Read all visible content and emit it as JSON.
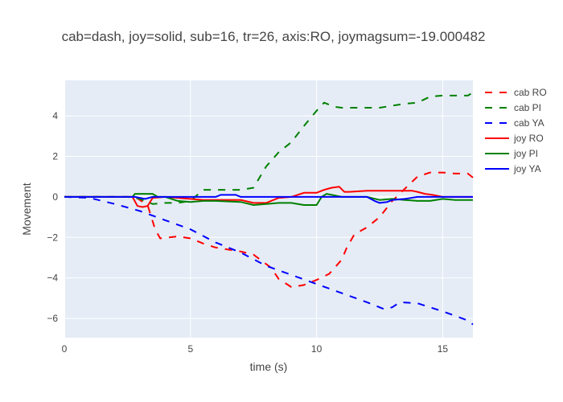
{
  "chart_data": {
    "type": "line",
    "title": "cab=dash, joy=solid, sub=16, tr=26, axis:RO, joymagsum=-19.000482",
    "xlabel": "time (s)",
    "ylabel": "Movement",
    "xlim": [
      0,
      16.2
    ],
    "ylim": [
      -6.95,
      5.75
    ],
    "x_ticks": [
      0,
      5,
      10,
      15
    ],
    "y_ticks": [
      -6,
      -4,
      -2,
      0,
      2,
      4
    ],
    "x_tick_labels": [
      "0",
      "5",
      "10",
      "15"
    ],
    "y_tick_labels": [
      "−6",
      "−4",
      "−2",
      "0",
      "2",
      "4"
    ],
    "grid": true,
    "legend_position": "right",
    "series": [
      {
        "name": "cab RO",
        "color": "#ff0000",
        "dash": "dash",
        "x": [
          0,
          2.8,
          3.3,
          3.6,
          3.8,
          4.5,
          5.0,
          5.5,
          6.0,
          7.0,
          7.5,
          8.2,
          8.5,
          9.0,
          9.5,
          10.0,
          10.5,
          11.0,
          11.2,
          11.5,
          12.0,
          12.5,
          13.0,
          13.5,
          14.0,
          14.5,
          15.0,
          15.5,
          16.0,
          16.2
        ],
        "values": [
          0,
          0,
          -0.4,
          -1.6,
          -2.05,
          -1.95,
          -2.05,
          -2.3,
          -2.5,
          -2.7,
          -2.85,
          -3.5,
          -4.05,
          -4.45,
          -4.35,
          -4.1,
          -3.8,
          -3.1,
          -2.5,
          -1.85,
          -1.5,
          -1.0,
          -0.2,
          0.4,
          1.0,
          1.2,
          1.2,
          1.15,
          1.15,
          0.95
        ]
      },
      {
        "name": "cab PI",
        "color": "#008000",
        "dash": "dash",
        "x": [
          0,
          2.5,
          3.0,
          3.5,
          4.0,
          4.5,
          5.0,
          5.5,
          6.0,
          7.0,
          7.5,
          8.0,
          8.5,
          9.0,
          9.5,
          10.0,
          10.3,
          10.7,
          11.0,
          12.0,
          12.5,
          13.0,
          13.5,
          14.0,
          14.5,
          15.0,
          15.5,
          16.0,
          16.2
        ],
        "values": [
          0,
          0,
          -0.1,
          -0.35,
          -0.3,
          -0.3,
          -0.2,
          0.35,
          0.35,
          0.35,
          0.45,
          1.5,
          2.2,
          2.7,
          3.5,
          4.25,
          4.65,
          4.45,
          4.4,
          4.4,
          4.4,
          4.5,
          4.6,
          4.65,
          4.95,
          5.0,
          5.0,
          5.0,
          5.15
        ]
      },
      {
        "name": "cab YA",
        "color": "#0000ff",
        "dash": "dash",
        "x": [
          0,
          1.0,
          2.0,
          3.0,
          4.0,
          5.0,
          6.0,
          7.0,
          8.0,
          9.0,
          10.0,
          11.0,
          12.0,
          12.7,
          13.0,
          13.3,
          14.0,
          15.0,
          16.0,
          16.2
        ],
        "values": [
          0,
          -0.05,
          -0.35,
          -0.7,
          -1.15,
          -1.6,
          -2.25,
          -2.75,
          -3.4,
          -3.85,
          -4.3,
          -4.75,
          -5.2,
          -5.55,
          -5.45,
          -5.2,
          -5.25,
          -5.65,
          -6.1,
          -6.3
        ]
      },
      {
        "name": "joy RO",
        "color": "#ff0000",
        "dash": "solid",
        "x": [
          0,
          2.7,
          2.9,
          3.1,
          3.3,
          3.5,
          4.0,
          5.0,
          5.5,
          6.0,
          7.0,
          7.5,
          8.0,
          8.5,
          9.0,
          9.5,
          10.0,
          10.3,
          10.6,
          10.9,
          11.1,
          11.3,
          12.0,
          12.5,
          13.0,
          13.5,
          13.8,
          14.0,
          14.3,
          14.6,
          15.0,
          15.5,
          16.2
        ],
        "values": [
          0,
          0,
          -0.45,
          -0.5,
          -0.45,
          -0.05,
          0.0,
          -0.1,
          -0.15,
          -0.15,
          -0.15,
          -0.3,
          -0.3,
          -0.05,
          0.0,
          0.2,
          0.2,
          0.35,
          0.45,
          0.5,
          0.25,
          0.25,
          0.3,
          0.3,
          0.3,
          0.3,
          0.3,
          0.25,
          0.15,
          0.1,
          0.0,
          0.0,
          0.0
        ]
      },
      {
        "name": "joy PI",
        "color": "#008000",
        "dash": "solid",
        "x": [
          0,
          2.7,
          2.8,
          3.5,
          3.7,
          4.0,
          4.5,
          5.0,
          5.5,
          6.0,
          7.0,
          7.5,
          8.0,
          8.5,
          9.0,
          9.5,
          10.0,
          10.2,
          10.4,
          10.8,
          11.0,
          12.0,
          12.5,
          13.0,
          13.5,
          14.0,
          14.5,
          15.0,
          15.5,
          16.2
        ],
        "values": [
          0,
          0,
          0.15,
          0.15,
          0.0,
          0.0,
          -0.2,
          -0.25,
          -0.2,
          -0.2,
          -0.25,
          -0.4,
          -0.35,
          -0.3,
          -0.3,
          -0.4,
          -0.4,
          0.0,
          0.15,
          0.05,
          0.0,
          0.0,
          -0.15,
          -0.1,
          -0.15,
          -0.2,
          -0.2,
          -0.1,
          -0.15,
          -0.15
        ]
      },
      {
        "name": "joy YA",
        "color": "#0000ff",
        "dash": "solid",
        "x": [
          0,
          2.8,
          3.0,
          3.2,
          3.5,
          4.0,
          5.0,
          5.5,
          6.0,
          6.2,
          6.8,
          7.0,
          8.0,
          9.0,
          10.0,
          11.0,
          12.0,
          12.3,
          12.5,
          12.8,
          13.0,
          13.5,
          14.0,
          15.0,
          16.2
        ],
        "values": [
          0,
          0,
          -0.05,
          -0.1,
          0.0,
          0.0,
          0.0,
          0.0,
          0.0,
          0.1,
          0.1,
          0.0,
          0.0,
          0.0,
          0.0,
          0.0,
          0.0,
          -0.2,
          -0.3,
          -0.25,
          -0.15,
          -0.1,
          0.0,
          0.0,
          0.0
        ]
      }
    ]
  }
}
